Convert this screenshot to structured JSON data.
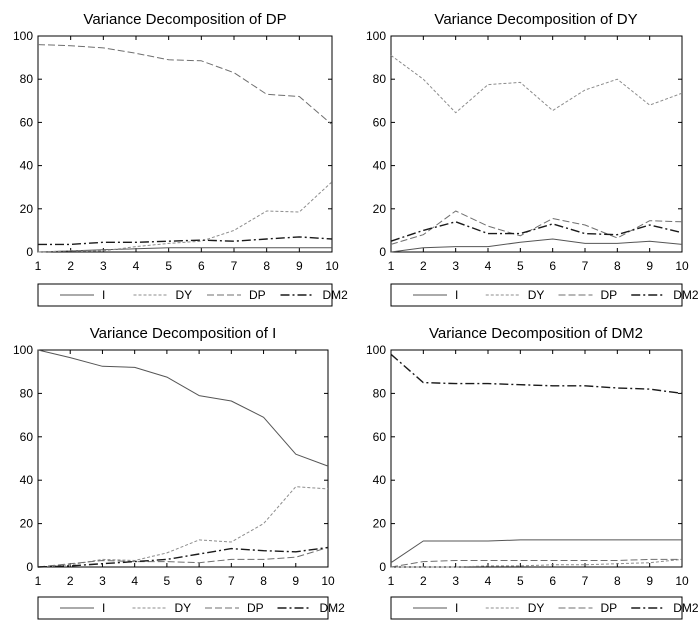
{
  "chart_data": [
    {
      "type": "line",
      "title": "Variance Decomposition of DP",
      "x": [
        1,
        2,
        3,
        4,
        5,
        6,
        7,
        8,
        9,
        10
      ],
      "ylim": [
        0,
        100
      ],
      "yticks": [
        0,
        20,
        40,
        60,
        80,
        100
      ],
      "series": [
        {
          "name": "I",
          "style": "solid",
          "values": [
            0,
            0.5,
            1,
            1.5,
            2,
            2,
            2,
            2,
            2,
            2
          ]
        },
        {
          "name": "DY",
          "style": "dotted",
          "values": [
            0,
            0.5,
            0.5,
            2.5,
            4,
            5,
            10,
            19,
            18.5,
            32.5
          ]
        },
        {
          "name": "DP",
          "style": "dashed",
          "values": [
            96,
            95.5,
            94.5,
            92,
            89,
            88.5,
            83,
            73,
            72,
            59
          ]
        },
        {
          "name": "DM2",
          "style": "dashdot",
          "values": [
            3.5,
            3.5,
            4.5,
            4.5,
            5,
            5.5,
            5,
            6,
            7,
            6
          ]
        }
      ]
    },
    {
      "type": "line",
      "title": "Variance Decomposition of DY",
      "x": [
        1,
        2,
        3,
        4,
        5,
        6,
        7,
        8,
        9,
        10
      ],
      "ylim": [
        0,
        100
      ],
      "yticks": [
        0,
        20,
        40,
        60,
        80,
        100
      ],
      "series": [
        {
          "name": "I",
          "style": "solid",
          "values": [
            0,
            2,
            2.5,
            2.5,
            4.5,
            6,
            4,
            4,
            5,
            3.5
          ]
        },
        {
          "name": "DY",
          "style": "dotted",
          "values": [
            91,
            80,
            64.5,
            77.5,
            78.5,
            65.5,
            75,
            80,
            68,
            73.5
          ]
        },
        {
          "name": "DP",
          "style": "dashed",
          "values": [
            3.5,
            8,
            19,
            12,
            7.5,
            15.5,
            12.5,
            6.5,
            14.5,
            14
          ]
        },
        {
          "name": "DM2",
          "style": "dashdot",
          "values": [
            5,
            10,
            14,
            8.5,
            8.5,
            13,
            8.5,
            8,
            12.5,
            9
          ]
        }
      ]
    },
    {
      "type": "line",
      "title": "Variance Decomposition of I",
      "x": [
        1,
        2,
        3,
        4,
        5,
        6,
        7,
        8,
        9,
        10
      ],
      "ylim": [
        0,
        100
      ],
      "yticks": [
        0,
        20,
        40,
        60,
        80,
        100
      ],
      "series": [
        {
          "name": "I",
          "style": "solid",
          "values": [
            100,
            96.5,
            92.5,
            92,
            87.5,
            79,
            76.5,
            69,
            52,
            46.5
          ]
        },
        {
          "name": "DY",
          "style": "dotted",
          "values": [
            0,
            1,
            3.5,
            3,
            6.5,
            12.5,
            11.5,
            20,
            37,
            36
          ]
        },
        {
          "name": "DP",
          "style": "dashed",
          "values": [
            0,
            1.5,
            3,
            2.5,
            2.5,
            2,
            3.5,
            3.5,
            4.5,
            9
          ]
        },
        {
          "name": "DM2",
          "style": "dashdot",
          "values": [
            0,
            0.5,
            1.5,
            2.5,
            3.5,
            6,
            8.5,
            7.5,
            7,
            9
          ]
        }
      ]
    },
    {
      "type": "line",
      "title": "Variance Decomposition of DM2",
      "x": [
        1,
        2,
        3,
        4,
        5,
        6,
        7,
        8,
        9,
        10
      ],
      "ylim": [
        0,
        100
      ],
      "yticks": [
        0,
        20,
        40,
        60,
        80,
        100
      ],
      "series": [
        {
          "name": "I",
          "style": "solid",
          "values": [
            2,
            12,
            12,
            12,
            12.5,
            12.5,
            12.5,
            12.5,
            12.5,
            12.5
          ]
        },
        {
          "name": "DY",
          "style": "dotted",
          "values": [
            0,
            0,
            0,
            0.5,
            0.5,
            1,
            1,
            1.5,
            2,
            3.5
          ]
        },
        {
          "name": "DP",
          "style": "dashed",
          "values": [
            0,
            2.5,
            3,
            3,
            3,
            3,
            3,
            3,
            3.5,
            3.5
          ]
        },
        {
          "name": "DM2",
          "style": "dashdot",
          "values": [
            98,
            85,
            84.5,
            84.5,
            84,
            83.5,
            83.5,
            82.5,
            82,
            80
          ]
        }
      ]
    }
  ],
  "colors": {
    "I": "#555555",
    "DY": "#8c8c8c",
    "DP": "#6f6f6f",
    "DM2": "#1a1a1a"
  }
}
